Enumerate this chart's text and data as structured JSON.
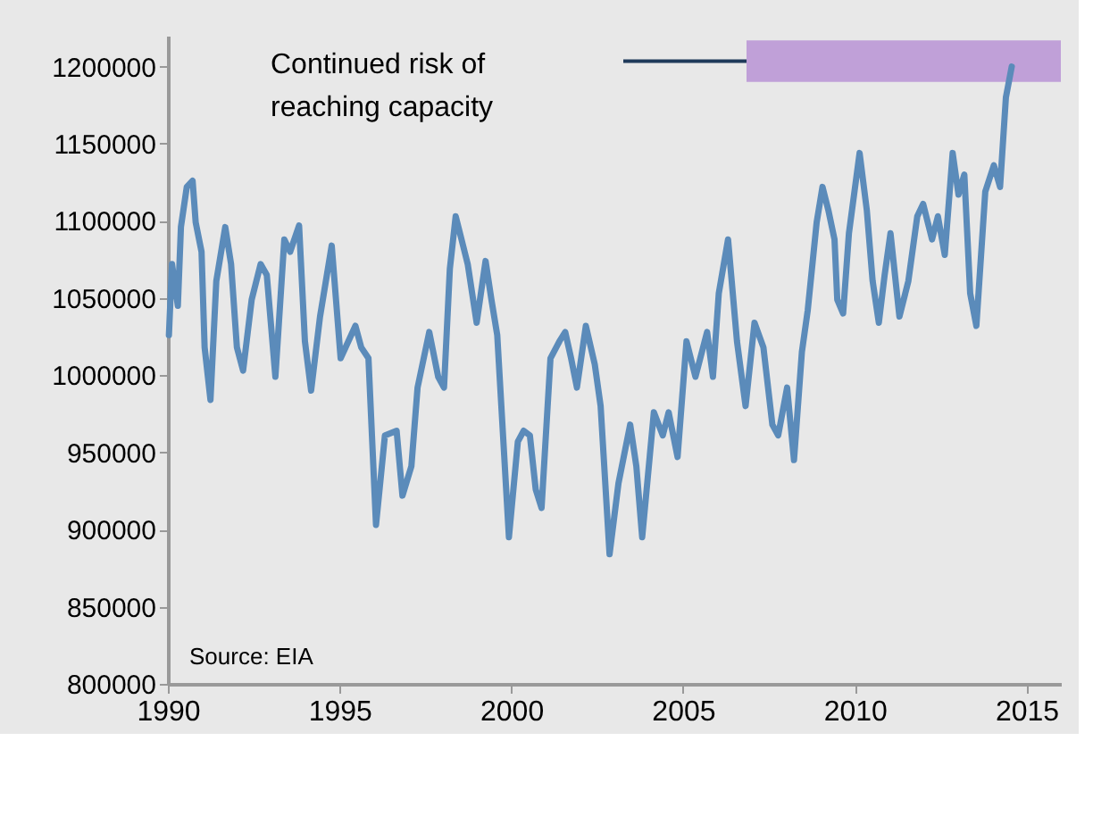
{
  "chart_data": {
    "type": "line",
    "xlim": [
      1990,
      2016
    ],
    "xticks": [
      1990,
      1995,
      2000,
      2005,
      2010,
      2015
    ],
    "ylim": [
      800000,
      1220000
    ],
    "yticks": [
      800000,
      850000,
      900000,
      950000,
      1000000,
      1050000,
      1100000,
      1150000,
      1200000
    ],
    "grid": false,
    "line_style": "solid",
    "marker": "none",
    "x": [
      1990.03,
      1990.12,
      1990.29,
      1990.38,
      1990.55,
      1990.72,
      1990.81,
      1990.98,
      1991.07,
      1991.24,
      1991.41,
      1991.67,
      1991.84,
      1992.01,
      1992.19,
      1992.44,
      1992.7,
      1992.88,
      1993.13,
      1993.39,
      1993.56,
      1993.82,
      1993.99,
      1994.17,
      1994.43,
      1994.77,
      1995.03,
      1995.46,
      1995.63,
      1995.84,
      1996.06,
      1996.32,
      1996.66,
      1996.83,
      1997.09,
      1997.27,
      1997.61,
      1997.87,
      1998.04,
      1998.21,
      1998.38,
      1998.64,
      1998.73,
      1998.99,
      1999.25,
      1999.42,
      1999.59,
      1999.93,
      2000.19,
      2000.36,
      2000.54,
      2000.71,
      2000.88,
      2001.14,
      2001.4,
      2001.57,
      2001.74,
      2001.91,
      2002.17,
      2002.43,
      2002.6,
      2002.86,
      2003.12,
      2003.46,
      2003.64,
      2003.81,
      2004.15,
      2004.41,
      2004.58,
      2004.84,
      2005.1,
      2005.36,
      2005.7,
      2005.87,
      2006.04,
      2006.31,
      2006.57,
      2006.82,
      2007.08,
      2007.34,
      2007.6,
      2007.77,
      2008.03,
      2008.23,
      2008.46,
      2008.63,
      2008.89,
      2009.06,
      2009.23,
      2009.41,
      2009.49,
      2009.66,
      2009.83,
      2010.14,
      2010.35,
      2010.52,
      2010.7,
      2010.87,
      2011.04,
      2011.3,
      2011.56,
      2011.82,
      2011.99,
      2012.25,
      2012.42,
      2012.62,
      2012.85,
      2013.02,
      2013.19,
      2013.36,
      2013.54,
      2013.8,
      2014.05,
      2014.23,
      2014.4,
      2014.57
    ],
    "series": [
      {
        "color": "#5b8bba",
        "values": [
          1026000,
          1072000,
          1045000,
          1096000,
          1122000,
          1126000,
          1099000,
          1080000,
          1018000,
          984000,
          1061000,
          1096000,
          1072000,
          1018000,
          1003000,
          1049000,
          1072000,
          1065000,
          999000,
          1088000,
          1080000,
          1097000,
          1022000,
          990000,
          1038000,
          1084000,
          1011000,
          1032000,
          1018000,
          1011000,
          903000,
          961000,
          964000,
          922000,
          941000,
          992000,
          1028000,
          999000,
          992000,
          1069000,
          1103000,
          1080000,
          1072000,
          1034000,
          1074000,
          1049000,
          1026000,
          895000,
          957000,
          964000,
          961000,
          926000,
          914000,
          1011000,
          1022000,
          1028000,
          1011000,
          992000,
          1032000,
          1007000,
          980000,
          884000,
          930000,
          968000,
          941000,
          895000,
          976000,
          961000,
          976000,
          947000,
          1022000,
          999000,
          1028000,
          999000,
          1053000,
          1088000,
          1022000,
          980000,
          1034000,
          1018000,
          968000,
          961000,
          992000,
          945000,
          1015000,
          1042000,
          1099000,
          1122000,
          1107000,
          1088000,
          1049000,
          1040000,
          1092000,
          1144000,
          1107000,
          1061000,
          1034000,
          1065000,
          1092000,
          1038000,
          1061000,
          1103000,
          1111000,
          1088000,
          1103000,
          1078000,
          1144000,
          1117000,
          1130000,
          1053000,
          1032000,
          1119000,
          1136000,
          1122000,
          1180000,
          1200000
        ]
      }
    ],
    "bands": [
      {
        "axis": "y",
        "from": 1190000,
        "to": 1217000,
        "color": "#c0a0d8"
      }
    ],
    "annotations": [
      "Continued risk of\nreaching capacity",
      "Source: EIA"
    ]
  }
}
